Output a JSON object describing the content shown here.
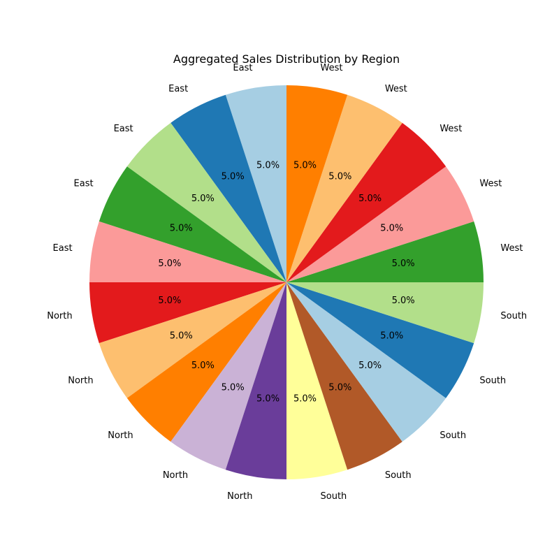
{
  "chart_data": {
    "type": "pie",
    "title": "Aggregated Sales Distribution by Region",
    "start_angle_deg": 90,
    "direction": "counterclockwise",
    "slices": [
      {
        "label": "East",
        "value": 5.0,
        "pct_label": "5.0%",
        "color": "#a6cee3"
      },
      {
        "label": "East",
        "value": 5.0,
        "pct_label": "5.0%",
        "color": "#1f78b4"
      },
      {
        "label": "East",
        "value": 5.0,
        "pct_label": "5.0%",
        "color": "#b2df8a"
      },
      {
        "label": "East",
        "value": 5.0,
        "pct_label": "5.0%",
        "color": "#33a02c"
      },
      {
        "label": "East",
        "value": 5.0,
        "pct_label": "5.0%",
        "color": "#fb9a99"
      },
      {
        "label": "North",
        "value": 5.0,
        "pct_label": "5.0%",
        "color": "#e31a1c"
      },
      {
        "label": "North",
        "value": 5.0,
        "pct_label": "5.0%",
        "color": "#fdbf6f"
      },
      {
        "label": "North",
        "value": 5.0,
        "pct_label": "5.0%",
        "color": "#ff7f00"
      },
      {
        "label": "North",
        "value": 5.0,
        "pct_label": "5.0%",
        "color": "#cab2d6"
      },
      {
        "label": "North",
        "value": 5.0,
        "pct_label": "5.0%",
        "color": "#6a3d9a"
      },
      {
        "label": "South",
        "value": 5.0,
        "pct_label": "5.0%",
        "color": "#ffff99"
      },
      {
        "label": "South",
        "value": 5.0,
        "pct_label": "5.0%",
        "color": "#b15928"
      },
      {
        "label": "South",
        "value": 5.0,
        "pct_label": "5.0%",
        "color": "#a6cee3"
      },
      {
        "label": "South",
        "value": 5.0,
        "pct_label": "5.0%",
        "color": "#1f78b4"
      },
      {
        "label": "South",
        "value": 5.0,
        "pct_label": "5.0%",
        "color": "#b2df8a"
      },
      {
        "label": "West",
        "value": 5.0,
        "pct_label": "5.0%",
        "color": "#33a02c"
      },
      {
        "label": "West",
        "value": 5.0,
        "pct_label": "5.0%",
        "color": "#fb9a99"
      },
      {
        "label": "West",
        "value": 5.0,
        "pct_label": "5.0%",
        "color": "#e31a1c"
      },
      {
        "label": "West",
        "value": 5.0,
        "pct_label": "5.0%",
        "color": "#fdbf6f"
      },
      {
        "label": "West",
        "value": 5.0,
        "pct_label": "5.0%",
        "color": "#ff7f00"
      }
    ]
  }
}
